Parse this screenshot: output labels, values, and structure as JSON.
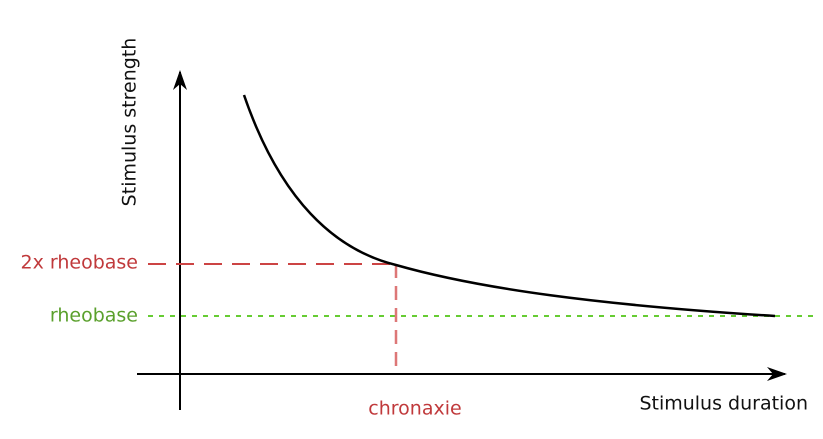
{
  "diagram": {
    "y_axis_label": "Stimulus strength",
    "x_axis_label": "Stimulus duration",
    "levels": {
      "double_rheobase": "2x rheobase",
      "rheobase": "rheobase",
      "chronaxie": "chronaxie"
    }
  }
}
